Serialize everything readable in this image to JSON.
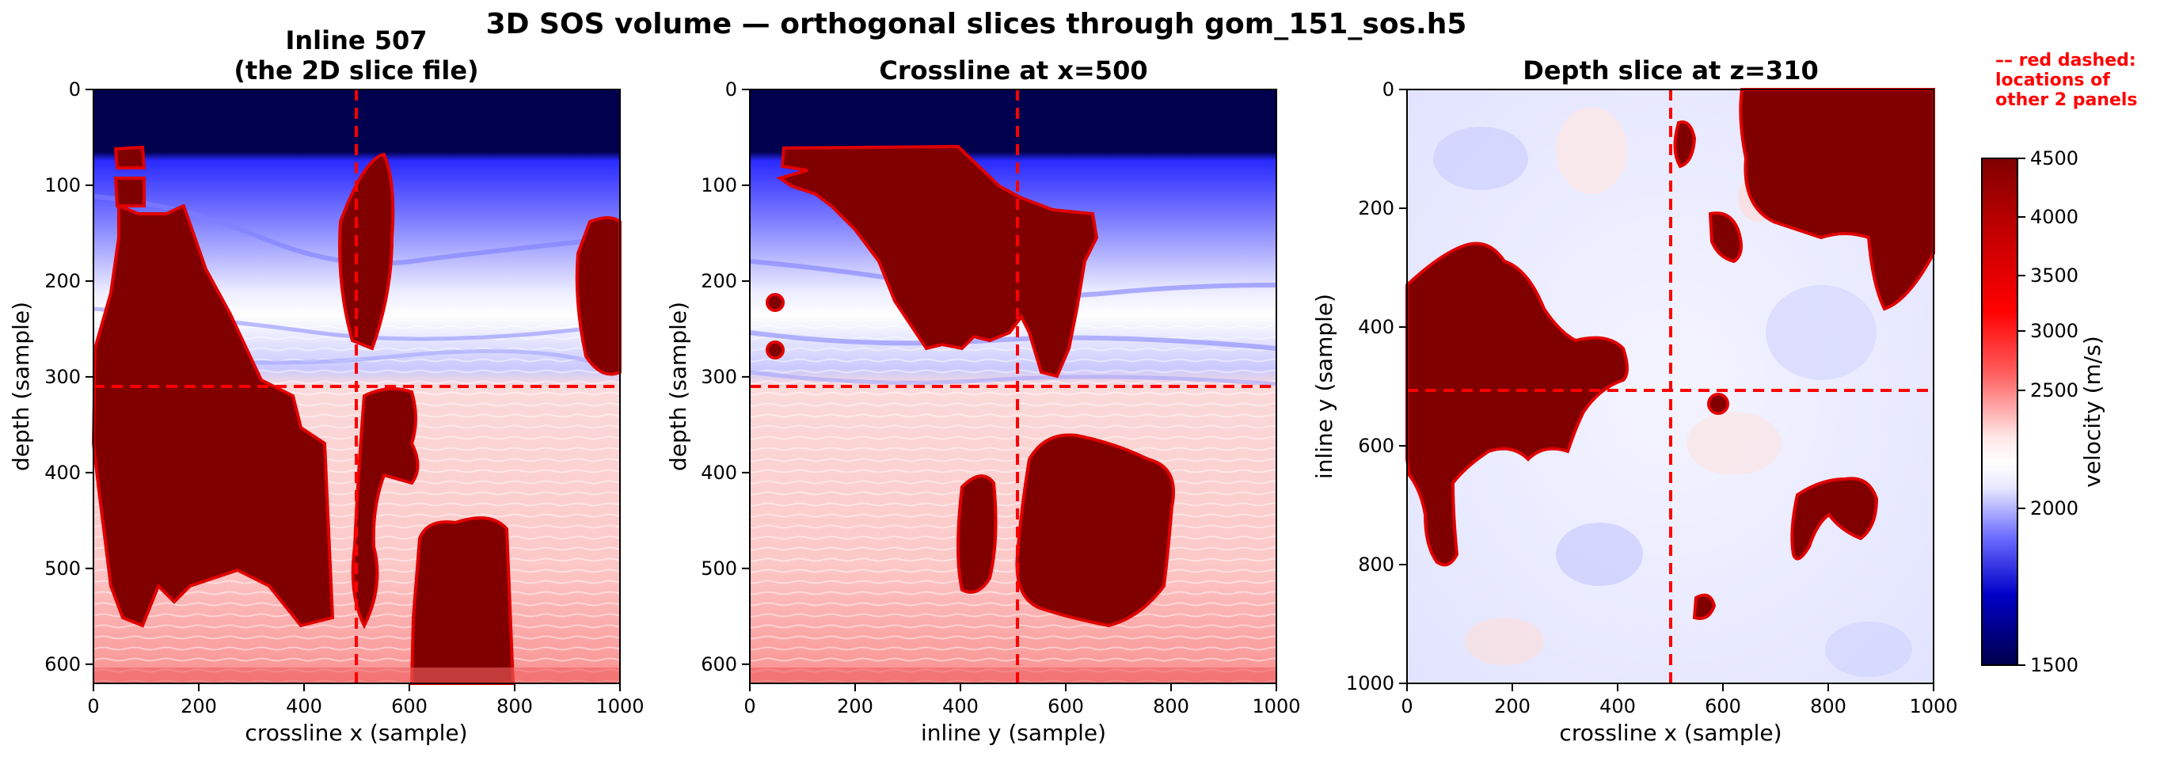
{
  "figure": {
    "suptitle": "3D SOS volume — orthogonal slices through gom_151_sos.h5",
    "note_lines": [
      "–– red dashed:",
      "locations of",
      "other 2 panels"
    ],
    "colors": {
      "velocity_low": "#00004c",
      "velocity_blue": "#0000ff",
      "velocity_mid": "#ffffff",
      "velocity_red": "#ff0000",
      "velocity_high": "#800000",
      "marker_lines": "#ff0000"
    }
  },
  "chart_data": [
    {
      "type": "heatmap",
      "title_lines": [
        "Inline 507",
        "(the 2D slice file)"
      ],
      "xlabel": "crossline x (sample)",
      "ylabel": "depth (sample)",
      "xlim": [
        0,
        1000
      ],
      "ylim": [
        620,
        0
      ],
      "xticks": [
        0,
        200,
        400,
        600,
        800,
        1000
      ],
      "yticks": [
        0,
        100,
        200,
        300,
        400,
        500,
        600
      ],
      "marker_lines": {
        "vertical_x": 500,
        "horizontal_y": 310
      },
      "layers": {
        "water_bottom_depth_approx": 70,
        "salt_bodies": 5
      },
      "grid": false
    },
    {
      "type": "heatmap",
      "title_lines": [
        "Crossline at x=500"
      ],
      "xlabel": "inline y (sample)",
      "ylabel": "depth (sample)",
      "xlim": [
        0,
        1000
      ],
      "ylim": [
        620,
        0
      ],
      "xticks": [
        0,
        200,
        400,
        600,
        800,
        1000
      ],
      "yticks": [
        0,
        100,
        200,
        300,
        400,
        500,
        600
      ],
      "marker_lines": {
        "vertical_x": 507,
        "horizontal_y": 310
      },
      "layers": {
        "water_bottom_depth_approx": 70,
        "salt_bodies": 5
      },
      "grid": false
    },
    {
      "type": "heatmap",
      "title_lines": [
        "Depth slice at z=310"
      ],
      "xlabel": "crossline x (sample)",
      "ylabel": "inline y (sample)",
      "xlim": [
        0,
        1000
      ],
      "ylim": [
        1000,
        0
      ],
      "xticks": [
        0,
        200,
        400,
        600,
        800,
        1000
      ],
      "yticks": [
        0,
        200,
        400,
        600,
        800,
        1000
      ],
      "marker_lines": {
        "vertical_x": 500,
        "horizontal_y": 507
      },
      "salt_bodies": 7,
      "grid": false
    }
  ],
  "colorbar": {
    "label": "velocity (m/s)",
    "range": [
      1500,
      4500
    ],
    "ticks": [
      1500,
      2000,
      2500,
      3000,
      3500,
      4000,
      4500
    ],
    "colormap": "seismic, non-linear (2500 white)"
  }
}
